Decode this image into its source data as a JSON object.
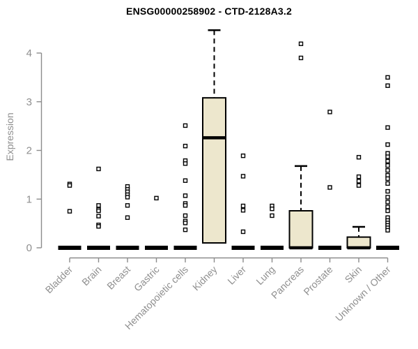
{
  "chart_data": {
    "type": "boxplot",
    "title": "ENSG00000258902 - CTD-2128A3.2",
    "ylabel": "Expression",
    "xlabel": "",
    "ylim": [
      0,
      4.6
    ],
    "yticks": [
      0,
      1,
      2,
      3,
      4
    ],
    "grid": false,
    "legend": false,
    "categories": [
      "Bladder",
      "Brain",
      "Breast",
      "Gastric",
      "Hematopoietic cells",
      "Kidney",
      "Liver",
      "Lung",
      "Pancreas",
      "Prostate",
      "Skin",
      "Unknown / Other"
    ],
    "boxes": [
      {
        "category": "Bladder",
        "q1": 0,
        "median": 0,
        "q3": 0,
        "whisker_low": 0,
        "whisker_high": 0,
        "outliers": [
          1.31,
          1.28,
          0.75
        ]
      },
      {
        "category": "Brain",
        "q1": 0,
        "median": 0,
        "q3": 0,
        "whisker_low": 0,
        "whisker_high": 0,
        "outliers": [
          1.62,
          0.87,
          0.79,
          0.76,
          0.65,
          0.47,
          0.44
        ]
      },
      {
        "category": "Breast",
        "q1": 0,
        "median": 0,
        "q3": 0,
        "whisker_low": 0,
        "whisker_high": 0,
        "outliers": [
          1.26,
          1.2,
          1.15,
          1.09,
          1.04,
          0.87,
          0.62
        ]
      },
      {
        "category": "Gastric",
        "q1": 0,
        "median": 0,
        "q3": 0,
        "whisker_low": 0,
        "whisker_high": 0,
        "outliers": [
          1.02
        ]
      },
      {
        "category": "Hematopoietic cells",
        "q1": 0,
        "median": 0,
        "q3": 0,
        "whisker_low": 0,
        "whisker_high": 0,
        "outliers": [
          2.51,
          2.09,
          1.79,
          1.73,
          1.38,
          1.07,
          0.91,
          0.87,
          0.66,
          0.55,
          0.51,
          0.37
        ]
      },
      {
        "category": "Kidney",
        "q1": 0.1,
        "median": 2.26,
        "q3": 3.08,
        "whisker_low": 0.1,
        "whisker_high": 4.47,
        "outliers": []
      },
      {
        "category": "Liver",
        "q1": 0,
        "median": 0,
        "q3": 0,
        "whisker_low": 0,
        "whisker_high": 0,
        "outliers": [
          1.89,
          1.47,
          0.86,
          0.77,
          0.33
        ]
      },
      {
        "category": "Lung",
        "q1": 0,
        "median": 0,
        "q3": 0,
        "whisker_low": 0,
        "whisker_high": 0,
        "outliers": [
          0.86,
          0.8,
          0.66
        ]
      },
      {
        "category": "Pancreas",
        "q1": 0,
        "median": 0,
        "q3": 0.76,
        "whisker_low": 0,
        "whisker_high": 1.68,
        "outliers": [
          4.19,
          3.9
        ]
      },
      {
        "category": "Prostate",
        "q1": 0,
        "median": 0,
        "q3": 0,
        "whisker_low": 0,
        "whisker_high": 0,
        "outliers": [
          2.79,
          1.24
        ]
      },
      {
        "category": "Skin",
        "q1": 0,
        "median": 0,
        "q3": 0.22,
        "whisker_low": 0,
        "whisker_high": 0.43,
        "outliers": [
          1.86,
          1.46,
          1.37,
          1.28
        ]
      },
      {
        "category": "Unknown / Other",
        "q1": 0,
        "median": 0,
        "q3": 0,
        "whisker_low": 0,
        "whisker_high": 0,
        "outliers": [
          3.5,
          3.33,
          2.47,
          2.12,
          1.94,
          1.87,
          1.78,
          1.69,
          1.59,
          1.49,
          1.42,
          1.32,
          1.16,
          1.04,
          0.94,
          0.84,
          0.76,
          0.62,
          0.56,
          0.51,
          0.46,
          0.41,
          0.36
        ]
      }
    ],
    "colors": {
      "box_fill": "#EDE7CD",
      "box_stroke": "#000000",
      "median": "#000000",
      "outlier_fill": "#FFFFFF",
      "axis": "#8C8C8C",
      "tick_label": "#8F8F8F",
      "title": "#000000",
      "background": "#FFFFFF"
    }
  }
}
